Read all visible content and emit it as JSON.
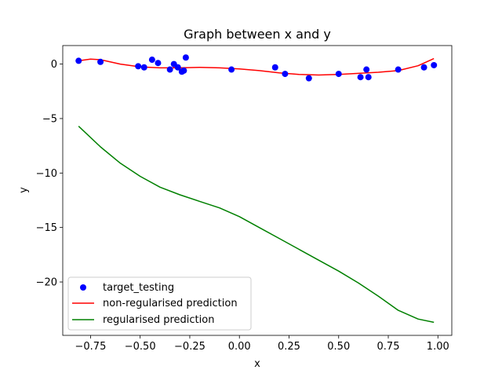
{
  "chart_data": {
    "type": "line",
    "title": "Graph between x and y",
    "xlabel": "x",
    "ylabel": "y",
    "xlim": [
      -0.89,
      1.07
    ],
    "ylim": [
      -24.9,
      1.7
    ],
    "xticks": [
      -0.75,
      -0.5,
      -0.25,
      0.0,
      0.25,
      0.5,
      0.75,
      1.0
    ],
    "xtick_labels": [
      "−0.75",
      "−0.50",
      "−0.25",
      "0.00",
      "0.25",
      "0.50",
      "0.75",
      "1.00"
    ],
    "yticks": [
      0,
      -5,
      -10,
      -15,
      -20
    ],
    "ytick_labels": [
      "0",
      "−5",
      "−10",
      "−15",
      "−20"
    ],
    "legend_position": "lower-left",
    "series": [
      {
        "name": "target_testing",
        "kind": "scatter",
        "color": "#0000ff",
        "x": [
          -0.81,
          -0.7,
          -0.51,
          -0.48,
          -0.44,
          -0.41,
          -0.35,
          -0.33,
          -0.31,
          -0.29,
          -0.28,
          -0.27,
          -0.04,
          0.18,
          0.23,
          0.35,
          0.5,
          0.61,
          0.64,
          0.65,
          0.8,
          0.93,
          0.98
        ],
        "y": [
          0.3,
          0.2,
          -0.2,
          -0.3,
          0.4,
          0.1,
          -0.5,
          0.0,
          -0.3,
          -0.7,
          -0.6,
          0.6,
          -0.5,
          -0.3,
          -0.9,
          -1.3,
          -0.9,
          -1.2,
          -0.5,
          -1.2,
          -0.5,
          -0.3,
          -0.1
        ]
      },
      {
        "name": "non-regularised prediction",
        "kind": "line",
        "color": "#ff0000",
        "x": [
          -0.81,
          -0.75,
          -0.7,
          -0.6,
          -0.5,
          -0.4,
          -0.3,
          -0.2,
          -0.1,
          0.0,
          0.1,
          0.2,
          0.3,
          0.4,
          0.5,
          0.6,
          0.7,
          0.8,
          0.9,
          0.98
        ],
        "y": [
          0.3,
          0.45,
          0.4,
          0.0,
          -0.25,
          -0.35,
          -0.35,
          -0.3,
          -0.35,
          -0.45,
          -0.6,
          -0.8,
          -0.95,
          -1.0,
          -0.95,
          -0.85,
          -0.75,
          -0.6,
          -0.15,
          0.5
        ]
      },
      {
        "name": "regularised prediction",
        "kind": "line",
        "color": "#008000",
        "x": [
          -0.81,
          -0.7,
          -0.6,
          -0.5,
          -0.4,
          -0.3,
          -0.2,
          -0.1,
          0.0,
          0.1,
          0.2,
          0.3,
          0.4,
          0.5,
          0.6,
          0.7,
          0.8,
          0.9,
          0.98
        ],
        "y": [
          -5.7,
          -7.6,
          -9.1,
          -10.3,
          -11.3,
          -12.0,
          -12.6,
          -13.2,
          -14.0,
          -15.0,
          -16.0,
          -17.0,
          -18.0,
          -19.0,
          -20.1,
          -21.3,
          -22.6,
          -23.4,
          -23.7
        ]
      }
    ]
  }
}
